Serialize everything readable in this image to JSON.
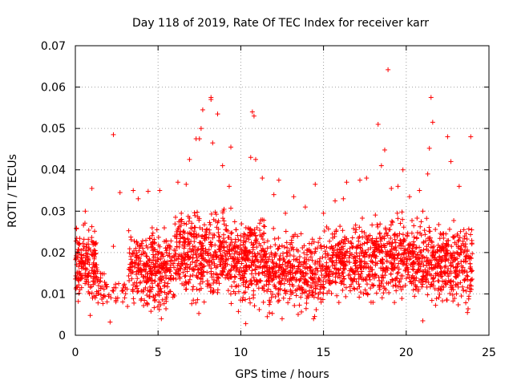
{
  "chart_data": {
    "type": "scatter",
    "title": "Day 118 of 2019, Rate Of TEC Index for receiver karr",
    "xlabel": "GPS time / hours",
    "ylabel": "ROTI / TECUs",
    "xlim": [
      0,
      25
    ],
    "ylim": [
      0,
      0.07
    ],
    "x_ticks": [
      "0",
      "5",
      "10",
      "15",
      "20",
      "25"
    ],
    "y_ticks": [
      "0",
      "0.01",
      "0.02",
      "0.03",
      "0.04",
      "0.05",
      "0.06",
      "0.07"
    ],
    "grid": true,
    "marker": "+",
    "color": "#ff0000",
    "series": [
      {
        "name": "ROTI",
        "points": [
          [
            2.3,
            0.0485
          ],
          [
            18.9,
            0.0642
          ],
          [
            8.2,
            0.0575
          ],
          [
            8.2,
            0.057
          ],
          [
            21.5,
            0.0575
          ],
          [
            7.7,
            0.0545
          ],
          [
            18.3,
            0.051
          ],
          [
            10.7,
            0.054
          ],
          [
            10.8,
            0.053
          ],
          [
            21.6,
            0.0515
          ],
          [
            7.6,
            0.05
          ],
          [
            23.9,
            0.048
          ],
          [
            22.5,
            0.048
          ],
          [
            8.3,
            0.0465
          ],
          [
            9.4,
            0.0455
          ],
          [
            21.4,
            0.0452
          ],
          [
            18.7,
            0.0448
          ],
          [
            10.6,
            0.043
          ],
          [
            6.2,
            0.037
          ],
          [
            14.5,
            0.0365
          ],
          [
            1.0,
            0.0355
          ],
          [
            3.5,
            0.035
          ],
          [
            2.7,
            0.0345
          ],
          [
            4.4,
            0.0348
          ],
          [
            12.0,
            0.034
          ],
          [
            16.2,
            0.033
          ],
          [
            19.5,
            0.036
          ],
          [
            20.8,
            0.035
          ],
          [
            13.2,
            0.0335
          ],
          [
            15.7,
            0.0325
          ],
          [
            0.6,
            0.03
          ],
          [
            2.3,
            0.0215
          ],
          [
            2.1,
            0.0032
          ],
          [
            10.3,
            0.0028
          ],
          [
            23.7,
            0.0055
          ],
          [
            21.0,
            0.0035
          ],
          [
            5.2,
            0.004
          ],
          [
            14.4,
            0.004
          ],
          [
            0.9,
            0.0048
          ],
          [
            11.6,
            0.0045
          ],
          [
            7.3,
            0.0475
          ],
          [
            7.5,
            0.0475
          ],
          [
            8.6,
            0.0535
          ],
          [
            9.3,
            0.036
          ],
          [
            18.5,
            0.041
          ],
          [
            21.3,
            0.039
          ],
          [
            22.7,
            0.042
          ],
          [
            17.6,
            0.038
          ],
          [
            16.4,
            0.037
          ],
          [
            3.8,
            0.033
          ],
          [
            23.2,
            0.036
          ],
          [
            5.1,
            0.035
          ],
          [
            13.9,
            0.031
          ],
          [
            12.3,
            0.0375
          ],
          [
            19.8,
            0.04
          ],
          [
            20.2,
            0.0335
          ],
          [
            15.0,
            0.0295
          ],
          [
            6.7,
            0.0365
          ],
          [
            6.9,
            0.0425
          ],
          [
            8.9,
            0.041
          ],
          [
            10.9,
            0.0425
          ],
          [
            11.3,
            0.038
          ],
          [
            12.7,
            0.0295
          ],
          [
            17.2,
            0.0375
          ],
          [
            19.1,
            0.0355
          ]
        ]
      }
    ],
    "density_profile_note": "Dense band of crosses between about 0.005 and 0.03 across hours 0-24, sparse between 1.3-3.3 h",
    "density_profile": {
      "segments": [
        {
          "x_range": [
            0.0,
            1.3
          ],
          "y_low": 0.006,
          "y_high": 0.029,
          "count": 170
        },
        {
          "x_range": [
            1.3,
            2.0
          ],
          "y_low": 0.006,
          "y_high": 0.018,
          "count": 30
        },
        {
          "x_range": [
            2.0,
            3.2
          ],
          "y_low": 0.007,
          "y_high": 0.014,
          "count": 25
        },
        {
          "x_range": [
            3.2,
            6.0
          ],
          "y_low": 0.004,
          "y_high": 0.028,
          "count": 330
        },
        {
          "x_range": [
            6.0,
            9.0
          ],
          "y_low": 0.005,
          "y_high": 0.034,
          "count": 380
        },
        {
          "x_range": [
            9.0,
            11.5
          ],
          "y_low": 0.004,
          "y_high": 0.032,
          "count": 330
        },
        {
          "x_range": [
            11.5,
            15.0
          ],
          "y_low": 0.004,
          "y_high": 0.027,
          "count": 380
        },
        {
          "x_range": [
            15.0,
            18.0
          ],
          "y_low": 0.006,
          "y_high": 0.029,
          "count": 330
        },
        {
          "x_range": [
            18.0,
            21.0
          ],
          "y_low": 0.006,
          "y_high": 0.031,
          "count": 360
        },
        {
          "x_range": [
            21.0,
            24.0
          ],
          "y_low": 0.004,
          "y_high": 0.03,
          "count": 360
        }
      ]
    }
  }
}
